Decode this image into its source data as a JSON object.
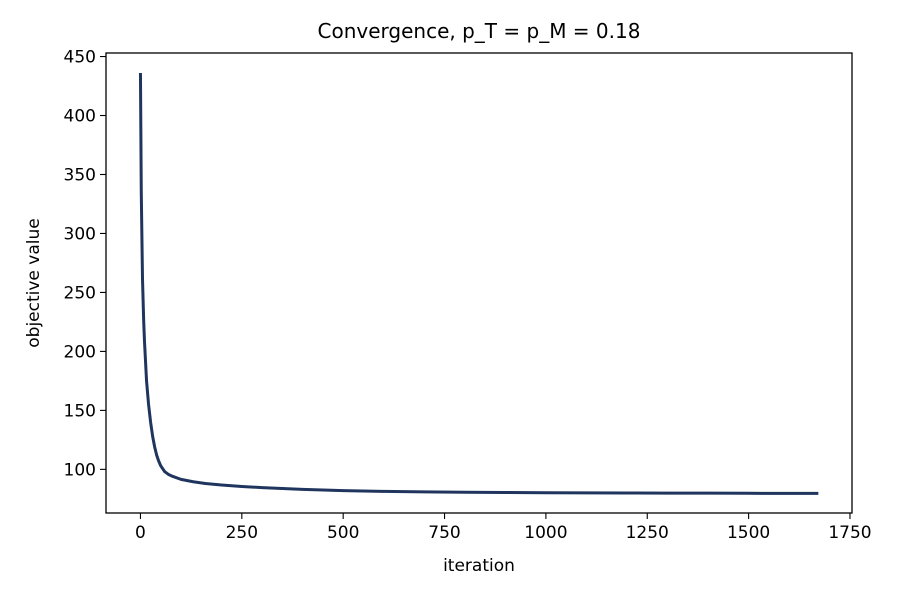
{
  "chart_data": {
    "type": "line",
    "title": "Convergence, p_T = p_M = 0.18",
    "xlabel": "iteration",
    "ylabel": "objective value",
    "xlim": [
      -85,
      1755
    ],
    "ylim": [
      63,
      453
    ],
    "xticks": [
      0,
      250,
      500,
      750,
      1000,
      1250,
      1500,
      1750
    ],
    "yticks": [
      100,
      150,
      200,
      250,
      300,
      350,
      400,
      450
    ],
    "grid": false,
    "line_color": "#1f355e",
    "series": [
      {
        "x": [
          0,
          2,
          5,
          8,
          10,
          15,
          20,
          25,
          30,
          35,
          40,
          45,
          50,
          60,
          70,
          80,
          100,
          130,
          160,
          200,
          250,
          300,
          400,
          500,
          600,
          700,
          800,
          900,
          1000,
          1100,
          1200,
          1300,
          1400,
          1500,
          1600,
          1672
        ],
        "y": [
          436,
          335,
          262,
          225,
          208,
          175,
          155,
          140,
          128,
          119,
          112,
          107,
          103,
          98,
          95.5,
          94,
          91.5,
          89.5,
          88,
          86.7,
          85.5,
          84.5,
          83,
          82,
          81.3,
          80.9,
          80.6,
          80.4,
          80.2,
          80.1,
          80.0,
          79.9,
          79.8,
          79.7,
          79.6,
          79.6
        ]
      }
    ]
  }
}
